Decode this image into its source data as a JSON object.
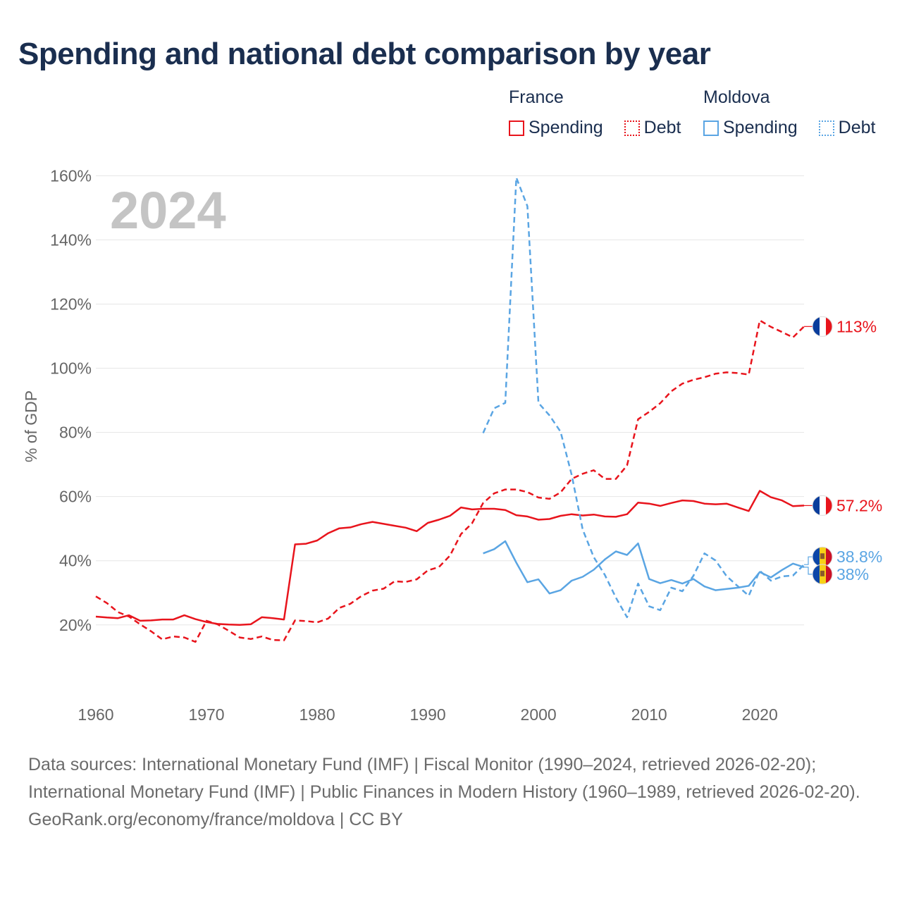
{
  "title": "Spending and national debt comparison by year",
  "year_label": "2024",
  "colors": {
    "france": "#e8141c",
    "moldova": "#5aa5e3",
    "grid": "#e6e6e6",
    "axis_text": "#666666",
    "year": "#c4c4c4"
  },
  "legend": {
    "france": {
      "name": "France",
      "spending": "Spending",
      "debt": "Debt"
    },
    "moldova": {
      "name": "Moldova",
      "spending": "Spending",
      "debt": "Debt"
    }
  },
  "chart_data": {
    "type": "line",
    "title": "Spending and national debt comparison by year",
    "xlabel": "",
    "ylabel": "% of GDP",
    "xlim": [
      1960,
      2024
    ],
    "ylim": [
      7,
      166
    ],
    "x_ticks": [
      1960,
      1970,
      1980,
      1990,
      2000,
      2010,
      2020
    ],
    "y_ticks": [
      20,
      40,
      60,
      80,
      100,
      120,
      140,
      160
    ],
    "y_tick_labels": [
      "20%",
      "40%",
      "60%",
      "80%",
      "100%",
      "120%",
      "140%",
      "160%"
    ],
    "grid": true,
    "series": [
      {
        "name": "France Spending",
        "country": "France",
        "style": "solid",
        "color": "#e8141c",
        "end_label": "57.2%",
        "x": [
          1960,
          1961,
          1962,
          1963,
          1964,
          1965,
          1966,
          1967,
          1968,
          1969,
          1970,
          1971,
          1972,
          1973,
          1974,
          1975,
          1976,
          1977,
          1978,
          1979,
          1980,
          1981,
          1982,
          1983,
          1984,
          1985,
          1986,
          1987,
          1988,
          1989,
          1990,
          1991,
          1992,
          1993,
          1994,
          1995,
          1996,
          1997,
          1998,
          1999,
          2000,
          2001,
          2002,
          2003,
          2004,
          2005,
          2006,
          2007,
          2008,
          2009,
          2010,
          2011,
          2012,
          2013,
          2014,
          2015,
          2016,
          2017,
          2018,
          2019,
          2020,
          2021,
          2022,
          2023,
          2024
        ],
        "y": [
          22.6,
          22.3,
          22.1,
          23.0,
          21.3,
          21.4,
          21.7,
          21.7,
          23.0,
          21.8,
          20.9,
          20.3,
          20.1,
          20.0,
          20.2,
          22.4,
          22.1,
          21.7,
          45.1,
          45.3,
          46.3,
          48.6,
          50.1,
          50.4,
          51.4,
          52.1,
          51.5,
          50.9,
          50.3,
          49.2,
          51.8,
          52.8,
          54.0,
          56.6,
          56.0,
          56.2,
          56.2,
          55.8,
          54.2,
          53.8,
          52.8,
          53.0,
          54.0,
          54.5,
          54.1,
          54.4,
          53.8,
          53.7,
          54.5,
          58.1,
          57.8,
          57.1,
          58.0,
          58.8,
          58.6,
          57.8,
          57.6,
          57.8,
          56.6,
          55.5,
          61.8,
          59.8,
          58.8,
          57.0,
          57.2
        ]
      },
      {
        "name": "France Debt",
        "country": "France",
        "style": "dashed",
        "color": "#e8141c",
        "end_label": "113%",
        "x": [
          1960,
          1961,
          1962,
          1963,
          1964,
          1965,
          1966,
          1967,
          1968,
          1969,
          1970,
          1971,
          1972,
          1973,
          1974,
          1975,
          1976,
          1977,
          1978,
          1979,
          1980,
          1981,
          1982,
          1983,
          1984,
          1985,
          1986,
          1987,
          1988,
          1989,
          1990,
          1991,
          1992,
          1993,
          1994,
          1995,
          1996,
          1997,
          1998,
          1999,
          2000,
          2001,
          2002,
          2003,
          2004,
          2005,
          2006,
          2007,
          2008,
          2009,
          2010,
          2011,
          2012,
          2013,
          2014,
          2015,
          2016,
          2017,
          2018,
          2019,
          2020,
          2021,
          2022,
          2023,
          2024
        ],
        "y": [
          28.9,
          26.8,
          24.0,
          22.6,
          20.2,
          18.0,
          15.5,
          16.4,
          16.1,
          14.7,
          21.3,
          20.2,
          18.2,
          16.1,
          15.6,
          16.4,
          15.3,
          15.2,
          21.4,
          21.2,
          20.8,
          22.0,
          25.3,
          26.6,
          29.0,
          30.7,
          31.3,
          33.6,
          33.4,
          34.2,
          37.0,
          38.0,
          41.6,
          48.3,
          51.7,
          58.0,
          61.0,
          62.2,
          62.2,
          61.4,
          59.7,
          59.3,
          61.3,
          65.5,
          67.1,
          68.2,
          65.5,
          65.5,
          69.7,
          84.1,
          86.4,
          89.1,
          92.8,
          95.2,
          96.4,
          97.2,
          98.3,
          98.7,
          98.5,
          98.0,
          114.9,
          112.9,
          111.3,
          109.6,
          113.0
        ]
      },
      {
        "name": "Moldova Spending",
        "country": "Moldova",
        "style": "solid",
        "color": "#5aa5e3",
        "end_label": "38%",
        "x": [
          1995,
          1996,
          1997,
          1998,
          1999,
          2000,
          2001,
          2002,
          2003,
          2004,
          2005,
          2006,
          2007,
          2008,
          2009,
          2010,
          2011,
          2012,
          2013,
          2014,
          2015,
          2016,
          2017,
          2018,
          2019,
          2020,
          2021,
          2022,
          2023,
          2024
        ],
        "y": [
          42.3,
          43.6,
          46.1,
          39.4,
          33.3,
          34.2,
          29.8,
          30.8,
          33.8,
          35.0,
          37.2,
          40.4,
          42.9,
          41.8,
          45.4,
          34.3,
          33.0,
          34.0,
          32.9,
          34.3,
          32.0,
          30.8,
          31.2,
          31.6,
          32.2,
          36.5,
          34.8,
          37.1,
          39.1,
          38.0
        ]
      },
      {
        "name": "Moldova Debt",
        "country": "Moldova",
        "style": "dashed",
        "color": "#5aa5e3",
        "end_label": "38.8%",
        "x": [
          1995,
          1996,
          1997,
          1998,
          1999,
          2000,
          2001,
          2002,
          2003,
          2004,
          2005,
          2006,
          2007,
          2008,
          2009,
          2010,
          2011,
          2012,
          2013,
          2014,
          2015,
          2016,
          2017,
          2018,
          2019,
          2020,
          2021,
          2022,
          2023,
          2024
        ],
        "y": [
          79.8,
          87.5,
          89.2,
          159.4,
          150.5,
          89.2,
          85.3,
          80.2,
          66.8,
          49.7,
          41.1,
          35.6,
          28.5,
          22.4,
          32.9,
          25.8,
          24.6,
          31.6,
          30.5,
          35.3,
          42.3,
          40.1,
          35.2,
          32.1,
          29.1,
          36.9,
          33.8,
          35.1,
          35.4,
          38.8
        ]
      }
    ]
  },
  "footer": {
    "sources": "Data sources: International Monetary Fund (IMF) | Fiscal Monitor (1990–2024, retrieved 2026-02-20); International Monetary Fund (IMF) | Public Finances in Modern History (1960–1989, retrieved 2026-02-20).",
    "credit": "GeoRank.org/economy/france/moldova | CC BY"
  }
}
